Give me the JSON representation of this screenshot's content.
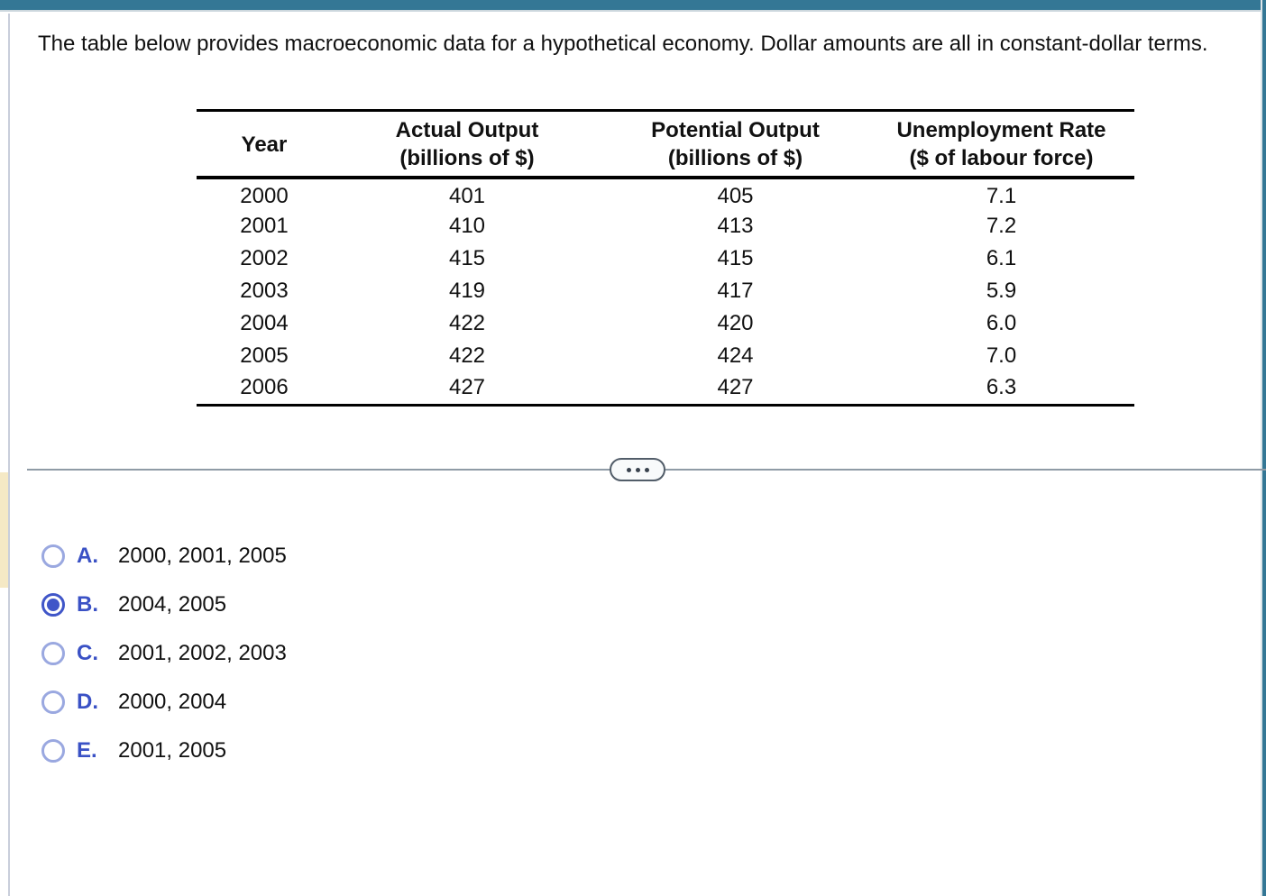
{
  "question": {
    "text": "The table below provides macroeconomic data for a hypothetical economy. Dollar amounts are all in constant-dollar terms."
  },
  "table": {
    "headers": [
      {
        "line1": "Year",
        "line2": ""
      },
      {
        "line1": "Actual Output",
        "line2": "(billions of $)"
      },
      {
        "line1": "Potential Output",
        "line2": "(billions of $)"
      },
      {
        "line1": "Unemployment Rate",
        "line2": "($ of labour force)"
      }
    ],
    "rows": [
      [
        "2000",
        "401",
        "405",
        "7.1"
      ],
      [
        "2001",
        "410",
        "413",
        "7.2"
      ],
      [
        "2002",
        "415",
        "415",
        "6.1"
      ],
      [
        "2003",
        "419",
        "417",
        "5.9"
      ],
      [
        "2004",
        "422",
        "420",
        "6.0"
      ],
      [
        "2005",
        "422",
        "424",
        "7.0"
      ],
      [
        "2006",
        "427",
        "427",
        "6.3"
      ]
    ]
  },
  "options": [
    {
      "letter": "A.",
      "text": "2000, 2001, 2005",
      "selected": false
    },
    {
      "letter": "B.",
      "text": "2004, 2005",
      "selected": true
    },
    {
      "letter": "C.",
      "text": "2001, 2002, 2003",
      "selected": false
    },
    {
      "letter": "D.",
      "text": "2000, 2004",
      "selected": false
    },
    {
      "letter": "E.",
      "text": "2001, 2005",
      "selected": false
    }
  ],
  "colors": {
    "accent_teal": "#347795",
    "option_blue": "#3a51c5",
    "radio_blue": "#4056c8",
    "radio_unselected_ring": "#9aa8e0",
    "divider_line": "#8f9ba6",
    "pill_border": "#525d69",
    "pill_bg": "#f8fafb",
    "highlight_strip": "#f5e9c5",
    "left_border": "#c9cedb",
    "text": "#111111"
  }
}
